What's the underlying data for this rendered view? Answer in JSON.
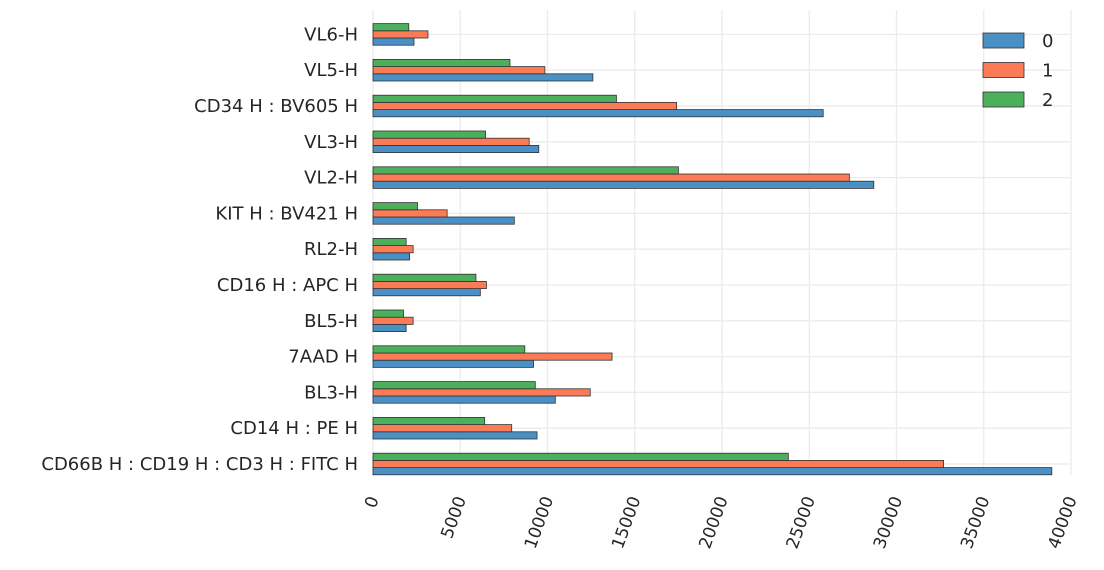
{
  "chart_data": {
    "type": "bar",
    "orientation": "horizontal",
    "categories": [
      "CD66B H : CD19 H : CD3 H : FITC H",
      "CD14 H : PE H",
      "BL3-H",
      "7AAD H",
      "BL5-H",
      "CD16 H : APC H",
      "RL2-H",
      "KIT H : BV421 H",
      "VL2-H",
      "VL3-H",
      "CD34 H : BV605 H",
      "VL5-H",
      "VL6-H"
    ],
    "series": [
      {
        "name": "0",
        "color": "#4a90c4",
        "values": [
          38900,
          9400,
          10450,
          9200,
          1900,
          6150,
          2100,
          8100,
          28700,
          9500,
          25800,
          12600,
          2350
        ]
      },
      {
        "name": "1",
        "color": "#fb7b56",
        "values": [
          32700,
          7950,
          12450,
          13700,
          2300,
          6500,
          2300,
          4250,
          27300,
          8950,
          17400,
          9850,
          3150
        ]
      },
      {
        "name": "2",
        "color": "#4caf5c",
        "values": [
          23800,
          6400,
          9300,
          8700,
          1750,
          5900,
          1900,
          2550,
          17500,
          6450,
          13950,
          7850,
          2050
        ]
      }
    ],
    "xlim": [
      0,
      40000
    ],
    "xticks": [
      "0",
      "5000",
      "10000",
      "15000",
      "20000",
      "25000",
      "30000",
      "35000",
      "40000"
    ],
    "xtick_rotation": -70,
    "xlabel": "",
    "ylabel": "",
    "title": "",
    "grid": true,
    "legend": {
      "position": "top-right",
      "entries": [
        "0",
        "1",
        "2"
      ]
    }
  }
}
